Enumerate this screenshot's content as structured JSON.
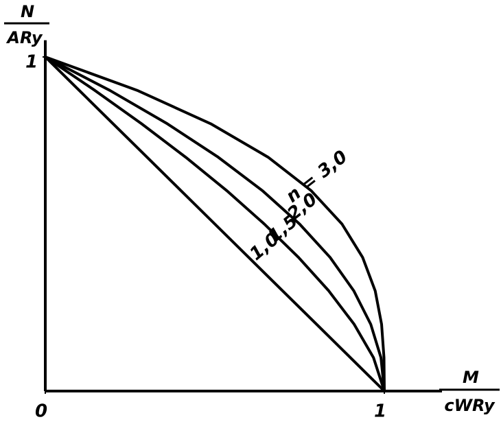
{
  "chart_data": {
    "type": "line",
    "ylabel_numerator": "N",
    "ylabel_denominator": "ARy",
    "xlabel_numerator": "M",
    "xlabel_denominator": "cWRy",
    "xlim": [
      0,
      1.17
    ],
    "ylim": [
      0,
      1.05
    ],
    "xticks": [
      0,
      1
    ],
    "yticks": [
      1
    ],
    "series": [
      {
        "name": "n = 3,0",
        "color": "#000000",
        "x": [
          0,
          0.271,
          0.488,
          0.657,
          0.784,
          0.875,
          0.936,
          0.973,
          0.992,
          0.999,
          1
        ],
        "values": [
          1,
          0.9,
          0.8,
          0.7,
          0.6,
          0.5,
          0.4,
          0.3,
          0.2,
          0.1,
          0
        ]
      },
      {
        "name": "2,0",
        "color": "#000000",
        "x": [
          0,
          0.19,
          0.36,
          0.51,
          0.64,
          0.75,
          0.84,
          0.91,
          0.96,
          0.99,
          1
        ],
        "values": [
          1,
          0.9,
          0.8,
          0.7,
          0.6,
          0.5,
          0.4,
          0.3,
          0.2,
          0.1,
          0
        ]
      },
      {
        "name": "1,5",
        "color": "#000000",
        "x": [
          0,
          0.146,
          0.284,
          0.414,
          0.535,
          0.646,
          0.747,
          0.836,
          0.911,
          0.968,
          1
        ],
        "values": [
          1,
          0.9,
          0.8,
          0.7,
          0.6,
          0.5,
          0.4,
          0.3,
          0.2,
          0.1,
          0
        ]
      },
      {
        "name": "1,0",
        "color": "#000000",
        "x": [
          0,
          0.1,
          0.2,
          0.3,
          0.4,
          0.5,
          0.6,
          0.7,
          0.8,
          0.9,
          1
        ],
        "values": [
          1,
          0.9,
          0.8,
          0.7,
          0.6,
          0.5,
          0.4,
          0.3,
          0.2,
          0.1,
          0
        ]
      }
    ]
  }
}
